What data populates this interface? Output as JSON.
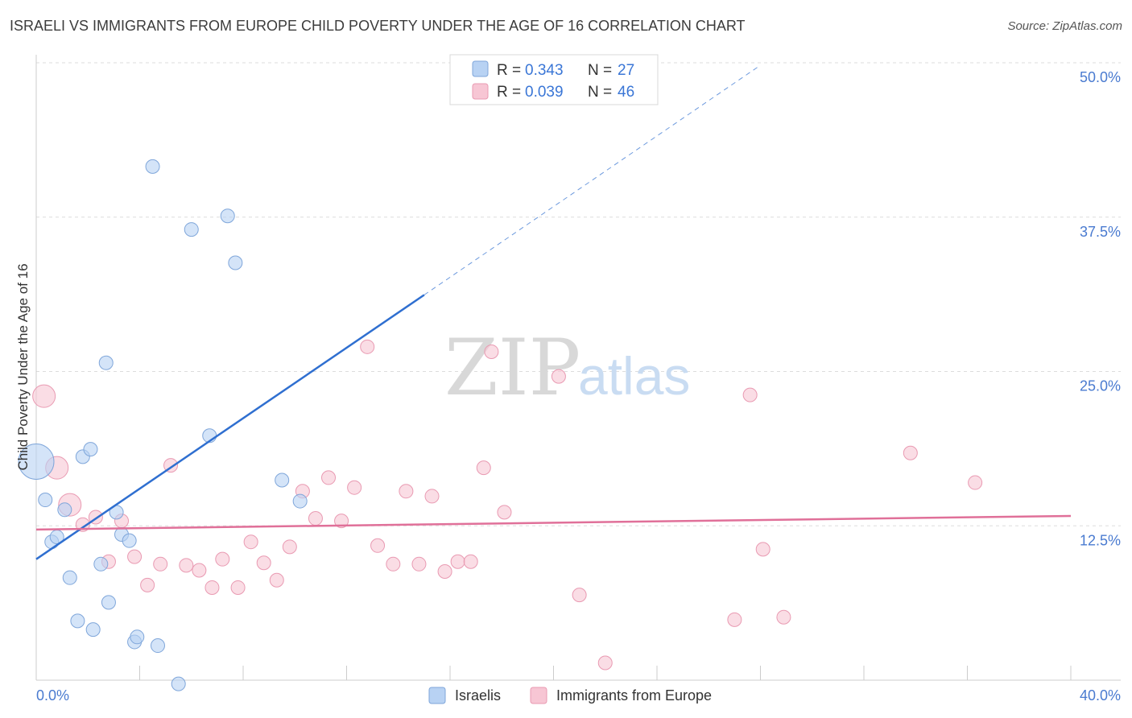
{
  "title": "ISRAELI VS IMMIGRANTS FROM EUROPE CHILD POVERTY UNDER THE AGE OF 16 CORRELATION CHART",
  "source": "Source: ZipAtlas.com",
  "watermark": {
    "zip": "ZIP",
    "atlas": "atlas"
  },
  "colors": {
    "israelis_fill": "#b8d2f3",
    "israelis_stroke": "#7fa6da",
    "israelis_line": "#2f6fd0",
    "europe_fill": "#f7c6d4",
    "europe_stroke": "#e99ab2",
    "europe_line": "#e07099",
    "grid": "#dddddd",
    "tick_text": "#4a7bd0"
  },
  "legend": {
    "rows": [
      {
        "r_label": "R =",
        "r_value": "0.343",
        "n_label": "N =",
        "n_value": "27"
      },
      {
        "r_label": "R =",
        "r_value": "0.039",
        "n_label": "N =",
        "n_value": "46"
      }
    ]
  },
  "chart_data": {
    "type": "scatter",
    "title": "ISRAELI VS IMMIGRANTS FROM EUROPE CHILD POVERTY UNDER THE AGE OF 16 CORRELATION CHART",
    "xlabel": "",
    "ylabel": "Child Poverty Under the Age of 16",
    "xlim": [
      0,
      40
    ],
    "ylim": [
      0,
      50
    ],
    "x_tick_labels": [
      "0.0%",
      "40.0%"
    ],
    "y_ticks": [
      12.5,
      25.0,
      37.5,
      50.0
    ],
    "y_tick_labels": [
      "12.5%",
      "25.0%",
      "37.5%",
      "50.0%"
    ],
    "grid": true,
    "series": [
      {
        "name": "Israelis",
        "points": [
          {
            "x": 0.0,
            "y": 17.7,
            "s": 3
          },
          {
            "x": 0.35,
            "y": 14.6,
            "s": 1
          },
          {
            "x": 0.6,
            "y": 11.2,
            "s": 1
          },
          {
            "x": 0.8,
            "y": 11.6,
            "s": 1
          },
          {
            "x": 1.1,
            "y": 13.8,
            "s": 1
          },
          {
            "x": 1.3,
            "y": 8.3,
            "s": 1
          },
          {
            "x": 1.6,
            "y": 4.8,
            "s": 1
          },
          {
            "x": 1.8,
            "y": 18.1,
            "s": 1
          },
          {
            "x": 2.1,
            "y": 18.7,
            "s": 1
          },
          {
            "x": 2.2,
            "y": 4.1,
            "s": 1
          },
          {
            "x": 2.5,
            "y": 9.4,
            "s": 1
          },
          {
            "x": 2.7,
            "y": 25.7,
            "s": 1
          },
          {
            "x": 2.8,
            "y": 6.3,
            "s": 1
          },
          {
            "x": 3.1,
            "y": 13.6,
            "s": 1
          },
          {
            "x": 3.3,
            "y": 11.8,
            "s": 1
          },
          {
            "x": 3.6,
            "y": 11.3,
            "s": 1
          },
          {
            "x": 3.8,
            "y": 3.1,
            "s": 1
          },
          {
            "x": 3.9,
            "y": 3.5,
            "s": 1
          },
          {
            "x": 4.5,
            "y": 41.6,
            "s": 1
          },
          {
            "x": 4.7,
            "y": 2.8,
            "s": 1
          },
          {
            "x": 5.5,
            "y": -0.3,
            "s": 1
          },
          {
            "x": 6.0,
            "y": 36.5,
            "s": 1
          },
          {
            "x": 6.7,
            "y": 19.8,
            "s": 1
          },
          {
            "x": 7.4,
            "y": 37.6,
            "s": 1
          },
          {
            "x": 7.7,
            "y": 33.8,
            "s": 1
          },
          {
            "x": 9.5,
            "y": 16.2,
            "s": 1
          },
          {
            "x": 10.2,
            "y": 14.5,
            "s": 1
          }
        ],
        "trend": {
          "x0": 0.0,
          "y0": 9.8,
          "x1": 15.0,
          "y1": 31.2,
          "dash_x1": 28.0,
          "dash_y1": 49.8
        }
      },
      {
        "name": "Immigrants from Europe",
        "points": [
          {
            "x": 0.3,
            "y": 23.0,
            "s": 2
          },
          {
            "x": 0.8,
            "y": 17.2,
            "s": 2
          },
          {
            "x": 1.3,
            "y": 14.2,
            "s": 2
          },
          {
            "x": 1.8,
            "y": 12.6,
            "s": 1
          },
          {
            "x": 2.3,
            "y": 13.2,
            "s": 1
          },
          {
            "x": 2.8,
            "y": 9.6,
            "s": 1
          },
          {
            "x": 3.3,
            "y": 12.9,
            "s": 1
          },
          {
            "x": 3.8,
            "y": 10.0,
            "s": 1
          },
          {
            "x": 4.3,
            "y": 7.7,
            "s": 1
          },
          {
            "x": 4.8,
            "y": 9.4,
            "s": 1
          },
          {
            "x": 5.2,
            "y": 17.4,
            "s": 1
          },
          {
            "x": 5.8,
            "y": 9.3,
            "s": 1
          },
          {
            "x": 6.3,
            "y": 8.9,
            "s": 1
          },
          {
            "x": 6.8,
            "y": 7.5,
            "s": 1
          },
          {
            "x": 7.2,
            "y": 9.8,
            "s": 1
          },
          {
            "x": 7.8,
            "y": 7.5,
            "s": 1
          },
          {
            "x": 8.3,
            "y": 11.2,
            "s": 1
          },
          {
            "x": 8.8,
            "y": 9.5,
            "s": 1
          },
          {
            "x": 9.3,
            "y": 8.1,
            "s": 1
          },
          {
            "x": 9.8,
            "y": 10.8,
            "s": 1
          },
          {
            "x": 10.3,
            "y": 15.3,
            "s": 1
          },
          {
            "x": 10.8,
            "y": 13.1,
            "s": 1
          },
          {
            "x": 11.3,
            "y": 16.4,
            "s": 1
          },
          {
            "x": 11.8,
            "y": 12.9,
            "s": 1
          },
          {
            "x": 12.3,
            "y": 15.6,
            "s": 1
          },
          {
            "x": 12.8,
            "y": 27.0,
            "s": 1
          },
          {
            "x": 13.2,
            "y": 10.9,
            "s": 1
          },
          {
            "x": 13.8,
            "y": 9.4,
            "s": 1
          },
          {
            "x": 14.3,
            "y": 15.3,
            "s": 1
          },
          {
            "x": 14.8,
            "y": 9.4,
            "s": 1
          },
          {
            "x": 15.3,
            "y": 14.9,
            "s": 1
          },
          {
            "x": 15.8,
            "y": 8.8,
            "s": 1
          },
          {
            "x": 16.3,
            "y": 9.6,
            "s": 1
          },
          {
            "x": 16.8,
            "y": 9.6,
            "s": 1
          },
          {
            "x": 17.3,
            "y": 17.2,
            "s": 1
          },
          {
            "x": 17.6,
            "y": 26.6,
            "s": 1
          },
          {
            "x": 18.1,
            "y": 13.6,
            "s": 1
          },
          {
            "x": 20.2,
            "y": 24.6,
            "s": 1
          },
          {
            "x": 21.0,
            "y": 6.9,
            "s": 1
          },
          {
            "x": 22.0,
            "y": 1.4,
            "s": 1
          },
          {
            "x": 27.0,
            "y": 4.9,
            "s": 1
          },
          {
            "x": 27.6,
            "y": 23.1,
            "s": 1
          },
          {
            "x": 28.1,
            "y": 10.6,
            "s": 1
          },
          {
            "x": 28.9,
            "y": 5.1,
            "s": 1
          },
          {
            "x": 33.8,
            "y": 18.4,
            "s": 1
          },
          {
            "x": 36.3,
            "y": 16.0,
            "s": 1
          }
        ],
        "trend": {
          "x0": 0.0,
          "y0": 12.2,
          "x1": 40.0,
          "y1": 13.3
        }
      }
    ]
  }
}
